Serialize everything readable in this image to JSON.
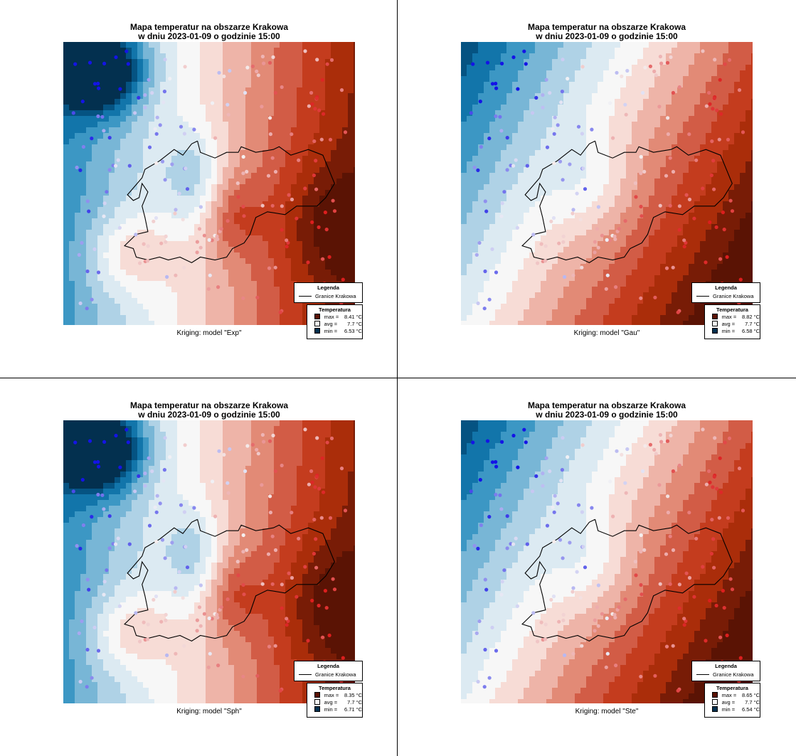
{
  "common": {
    "title_line1": "Mapa temperatur na obszarze Krakowa",
    "title_line2": "w dniu 2023-01-09 o godzinie 15:00",
    "legend_title": "Legenda",
    "legend_boundary": "Granice Krakowa",
    "temp_title": "Temperatura",
    "label_max": "max =",
    "label_avg": "avg =",
    "label_min": "min =",
    "unit": "°C",
    "colors": {
      "max": "#5a1304",
      "avg": "#f7f7f7",
      "min": "#03304f",
      "boundary": "#000000"
    }
  },
  "panels": [
    {
      "caption": "Kriging: model \"Exp\"",
      "max": "8.41",
      "avg": "7.7",
      "min": "6.53",
      "surface": "local"
    },
    {
      "caption": "Kriging: model \"Gau\"",
      "max": "8.82",
      "avg": "7.7",
      "min": "6.58",
      "surface": "gradient"
    },
    {
      "caption": "Kriging: model \"Sph\"",
      "max": "8.35",
      "avg": "7.7",
      "min": "6.71",
      "surface": "local"
    },
    {
      "caption": "Kriging: model \"Ste\"",
      "max": "8.65",
      "avg": "7.7",
      "min": "6.54",
      "surface": "gradient"
    }
  ]
}
